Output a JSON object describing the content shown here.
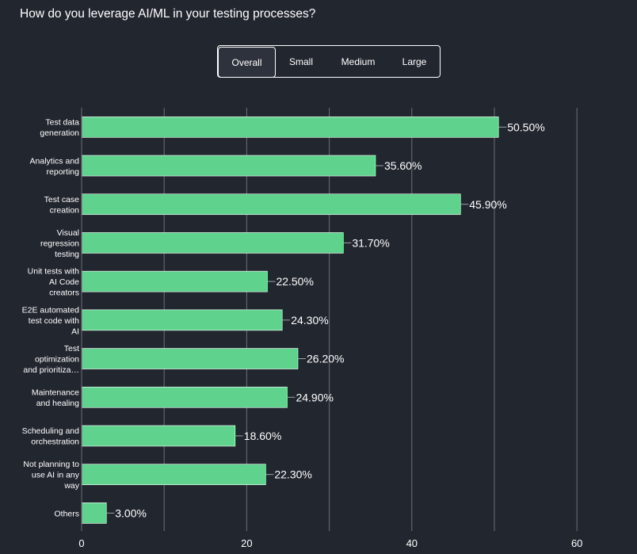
{
  "page": {
    "title": "How do you leverage AI/ML in your testing processes?"
  },
  "tabs": [
    {
      "label": "Overall",
      "active": true
    },
    {
      "label": "Small",
      "active": false
    },
    {
      "label": "Medium",
      "active": false
    },
    {
      "label": "Large",
      "active": false
    }
  ],
  "colors": {
    "background": "#22262f",
    "bar": "#5fd38d",
    "grid": "#6b6f78",
    "text": "#ffffff"
  },
  "chart_data": {
    "type": "bar",
    "orientation": "horizontal",
    "title": "How do you leverage AI/ML in your testing processes?",
    "xlim": [
      0,
      65
    ],
    "xticks": [
      0,
      20,
      40,
      60
    ],
    "grid": true,
    "categories": [
      [
        "Test data",
        "generation"
      ],
      [
        "Analytics and",
        "reporting"
      ],
      [
        "Test case",
        "creation"
      ],
      [
        "Visual",
        "regression",
        "testing"
      ],
      [
        "Unit tests with",
        "AI Code",
        "creators"
      ],
      [
        "E2E automated",
        "test code with",
        "AI"
      ],
      [
        "Test",
        "optimization",
        "and prioritiza…"
      ],
      [
        "Maintenance",
        "and healing"
      ],
      [
        "Scheduling and",
        "orchestration"
      ],
      [
        "Not planning to",
        "use AI in any",
        "way"
      ],
      [
        "Others"
      ]
    ],
    "values": [
      50.5,
      35.6,
      45.9,
      31.7,
      22.5,
      24.3,
      26.2,
      24.9,
      18.6,
      22.3,
      3.0
    ],
    "labels": [
      "50.50%",
      "35.60%",
      "45.90%",
      "31.70%",
      "22.50%",
      "24.30%",
      "26.20%",
      "24.90%",
      "18.60%",
      "22.30%",
      "3.00%"
    ]
  }
}
